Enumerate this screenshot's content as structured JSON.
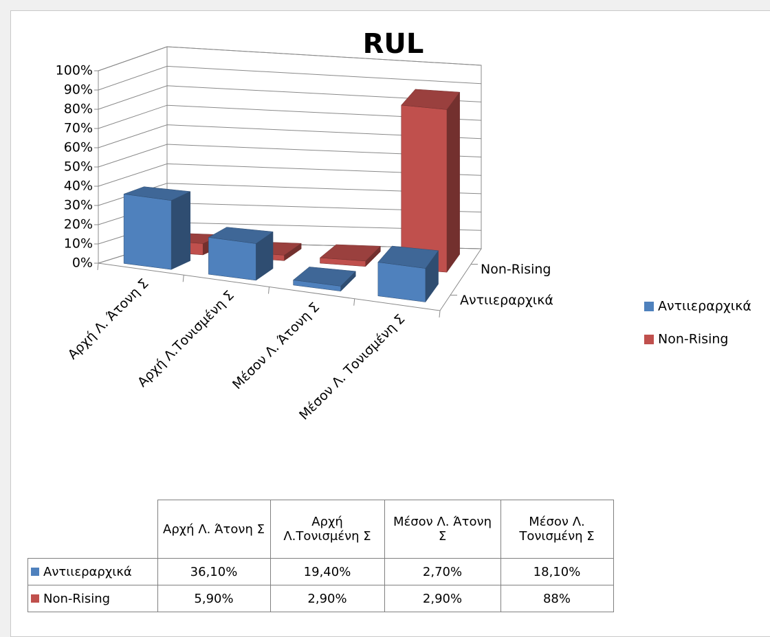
{
  "chart_data": {
    "type": "bar3d",
    "title": "RUL",
    "categories": [
      "Αρχή Λ. Άτονη Σ",
      "Αρχή Λ.Τονισμένη Σ",
      "Μέσον Λ. Άτονη Σ",
      "Μέσον Λ. Τονισμένη Σ"
    ],
    "series": [
      {
        "name": "Αντιιεραρχικά",
        "color": "#4f81bd",
        "values": [
          36.1,
          19.4,
          2.7,
          18.1
        ],
        "value_labels": [
          "36,10%",
          "19,40%",
          "2,70%",
          "18,10%"
        ]
      },
      {
        "name": "Non-Rising",
        "color": "#c0504d",
        "values": [
          5.9,
          2.9,
          2.9,
          88
        ],
        "value_labels": [
          "5,90%",
          "2,90%",
          "2,90%",
          "88%"
        ]
      }
    ],
    "ylim": [
      0,
      100
    ],
    "yticks": [
      {
        "value": 0,
        "label": "0%"
      },
      {
        "value": 10,
        "label": "10%"
      },
      {
        "value": 20,
        "label": "20%"
      },
      {
        "value": 30,
        "label": "30%"
      },
      {
        "value": 40,
        "label": "40%"
      },
      {
        "value": 50,
        "label": "50%"
      },
      {
        "value": 60,
        "label": "60%"
      },
      {
        "value": 70,
        "label": "70%"
      },
      {
        "value": 80,
        "label": "80%"
      },
      {
        "value": 90,
        "label": "90%"
      },
      {
        "value": 100,
        "label": "100%"
      }
    ],
    "grid": true,
    "legend": "right",
    "data_table": true
  }
}
